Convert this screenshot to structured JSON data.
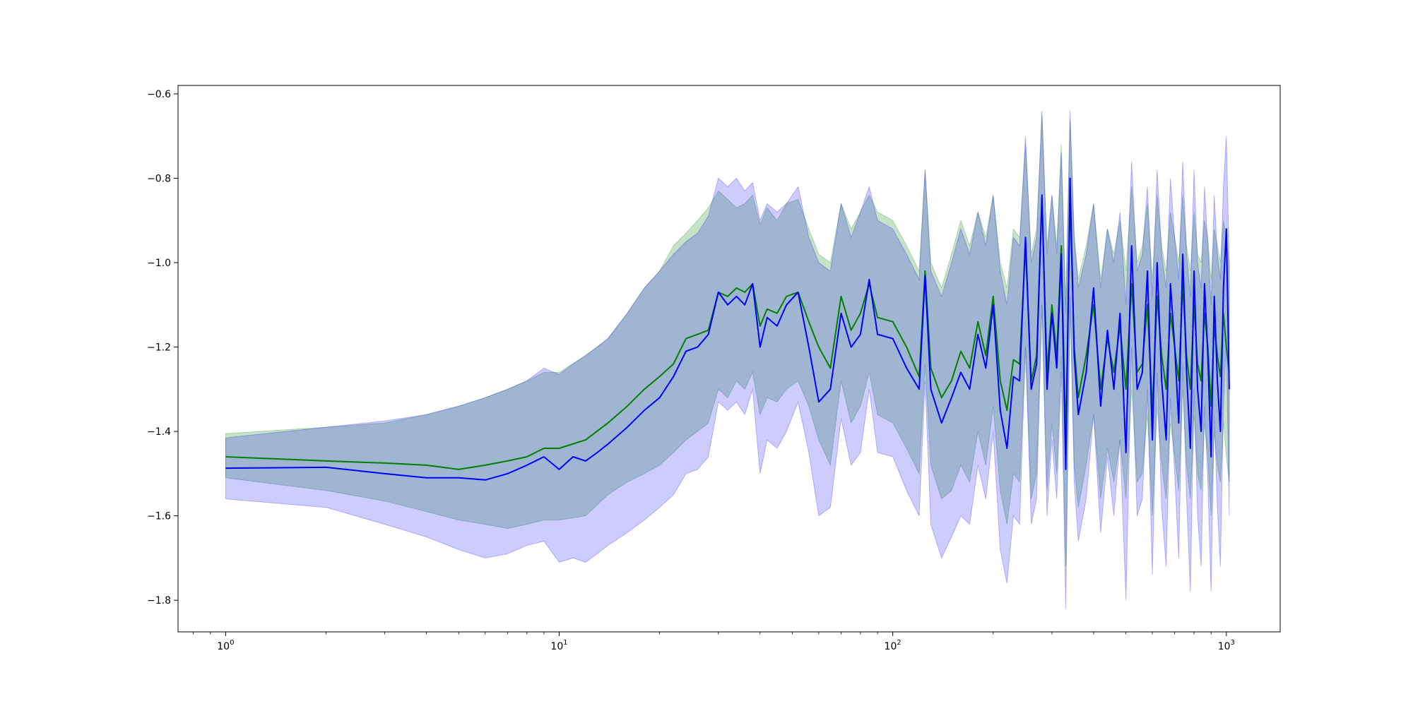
{
  "chart_data": {
    "type": "line",
    "title": "",
    "xlabel": "",
    "ylabel": "",
    "x_scale": "log",
    "xlim": [
      0.72,
      1450
    ],
    "ylim": [
      -1.875,
      -0.58
    ],
    "grid": false,
    "legend": "none",
    "x_ticks": [
      {
        "value": 1,
        "base": "10",
        "exp": "0"
      },
      {
        "value": 10,
        "base": "10",
        "exp": "1"
      },
      {
        "value": 100,
        "base": "10",
        "exp": "2"
      },
      {
        "value": 1000,
        "base": "10",
        "exp": "3"
      }
    ],
    "y_ticks": [
      {
        "value": -0.6,
        "label": "−0.6"
      },
      {
        "value": -0.8,
        "label": "−0.8"
      },
      {
        "value": -1.0,
        "label": "−1.0"
      },
      {
        "value": -1.2,
        "label": "−1.2"
      },
      {
        "value": -1.4,
        "label": "−1.4"
      },
      {
        "value": -1.6,
        "label": "−1.6"
      },
      {
        "value": -1.8,
        "label": "−1.8"
      }
    ],
    "series": [
      {
        "color": "#008000",
        "band_color": "#008000",
        "band_opacity": 0.22,
        "x": [
          1,
          2,
          3,
          4,
          5,
          6,
          7,
          8,
          9,
          10,
          12,
          14,
          16,
          18,
          20,
          22,
          24,
          26,
          28,
          30,
          32,
          34,
          36,
          38,
          40,
          42,
          45,
          48,
          52,
          56,
          60,
          65,
          70,
          75,
          80,
          85,
          90,
          100,
          110,
          120,
          125,
          130,
          140,
          150,
          160,
          170,
          180,
          190,
          200,
          210,
          220,
          230,
          240,
          250,
          260,
          270,
          280,
          290,
          300,
          310,
          320,
          330,
          340,
          350,
          360,
          380,
          400,
          420,
          440,
          460,
          480,
          500,
          520,
          540,
          560,
          580,
          600,
          620,
          640,
          660,
          680,
          700,
          720,
          740,
          760,
          780,
          800,
          820,
          840,
          860,
          880,
          900,
          920,
          940,
          960,
          980,
          1000,
          1020
        ],
        "y": [
          -1.46,
          -1.47,
          -1.475,
          -1.48,
          -1.49,
          -1.48,
          -1.47,
          -1.46,
          -1.44,
          -1.44,
          -1.42,
          -1.38,
          -1.34,
          -1.3,
          -1.27,
          -1.24,
          -1.18,
          -1.17,
          -1.16,
          -1.07,
          -1.08,
          -1.06,
          -1.07,
          -1.05,
          -1.15,
          -1.11,
          -1.12,
          -1.08,
          -1.07,
          -1.14,
          -1.2,
          -1.25,
          -1.08,
          -1.16,
          -1.12,
          -1.05,
          -1.13,
          -1.14,
          -1.2,
          -1.27,
          -1.02,
          -1.25,
          -1.32,
          -1.28,
          -1.21,
          -1.25,
          -1.14,
          -1.22,
          -1.08,
          -1.28,
          -1.35,
          -1.23,
          -1.24,
          -0.96,
          -1.28,
          -1.22,
          -0.85,
          -1.26,
          -1.1,
          -1.22,
          -0.96,
          -1.42,
          -0.85,
          -1.2,
          -1.32,
          -1.22,
          -1.1,
          -1.3,
          -1.18,
          -1.26,
          -1.15,
          -1.3,
          -1.05,
          -1.26,
          -1.24,
          -1.1,
          -1.35,
          -1.08,
          -1.22,
          -1.3,
          -1.12,
          -1.2,
          -1.28,
          -1.05,
          -1.22,
          -1.3,
          -1.1,
          -1.24,
          -1.28,
          -1.12,
          -1.2,
          -1.34,
          -1.15,
          -1.22,
          -1.27,
          -1.12,
          -1.2,
          -1.26
        ],
        "upper": [
          -1.405,
          -1.39,
          -1.38,
          -1.36,
          -1.34,
          -1.32,
          -1.3,
          -1.28,
          -1.26,
          -1.26,
          -1.22,
          -1.18,
          -1.12,
          -1.06,
          -1.02,
          -0.96,
          -0.93,
          -0.9,
          -0.87,
          -0.83,
          -0.85,
          -0.87,
          -0.86,
          -0.84,
          -0.91,
          -0.87,
          -0.9,
          -0.86,
          -0.85,
          -0.92,
          -0.98,
          -1.0,
          -0.86,
          -0.92,
          -0.88,
          -0.84,
          -0.88,
          -0.9,
          -0.96,
          -1.02,
          -0.78,
          -1.0,
          -1.06,
          -0.98,
          -0.9,
          -0.96,
          -0.88,
          -0.94,
          -0.84,
          -1.0,
          -1.06,
          -0.92,
          -0.94,
          -0.72,
          -0.98,
          -0.92,
          -0.65,
          -0.96,
          -0.84,
          -0.96,
          -0.72,
          -1.1,
          -0.66,
          -0.94,
          -1.04,
          -0.96,
          -0.86,
          -1.04,
          -0.92,
          -0.98,
          -0.9,
          -1.02,
          -0.82,
          -1.0,
          -0.96,
          -0.86,
          -1.04,
          -0.84,
          -0.96,
          -1.02,
          -0.88,
          -0.94,
          -1.0,
          -0.84,
          -0.96,
          -1.02,
          -0.88,
          -0.98,
          -1.0,
          -0.9,
          -0.94,
          -1.04,
          -0.92,
          -0.96,
          -1.0,
          -0.9,
          -0.94,
          -1.0
        ],
        "lower": [
          -1.51,
          -1.54,
          -1.565,
          -1.59,
          -1.61,
          -1.62,
          -1.63,
          -1.62,
          -1.61,
          -1.61,
          -1.6,
          -1.55,
          -1.52,
          -1.5,
          -1.48,
          -1.45,
          -1.42,
          -1.4,
          -1.38,
          -1.3,
          -1.32,
          -1.28,
          -1.3,
          -1.26,
          -1.36,
          -1.32,
          -1.33,
          -1.3,
          -1.28,
          -1.34,
          -1.42,
          -1.48,
          -1.28,
          -1.38,
          -1.34,
          -1.26,
          -1.36,
          -1.38,
          -1.44,
          -1.5,
          -1.24,
          -1.48,
          -1.56,
          -1.54,
          -1.48,
          -1.52,
          -1.4,
          -1.48,
          -1.34,
          -1.54,
          -1.62,
          -1.5,
          -1.52,
          -1.2,
          -1.56,
          -1.5,
          -1.1,
          -1.54,
          -1.38,
          -1.5,
          -1.22,
          -1.72,
          -1.1,
          -1.48,
          -1.58,
          -1.48,
          -1.36,
          -1.56,
          -1.44,
          -1.52,
          -1.42,
          -1.56,
          -1.3,
          -1.52,
          -1.5,
          -1.36,
          -1.6,
          -1.34,
          -1.48,
          -1.56,
          -1.38,
          -1.46,
          -1.54,
          -1.3,
          -1.48,
          -1.56,
          -1.36,
          -1.5,
          -1.54,
          -1.38,
          -1.46,
          -1.6,
          -1.4,
          -1.48,
          -1.52,
          -1.38,
          -1.46,
          -1.52
        ]
      },
      {
        "color": "#0000ff",
        "band_color": "#0000ff",
        "band_opacity": 0.2,
        "x": [
          1,
          2,
          3,
          4,
          5,
          6,
          7,
          8,
          9,
          10,
          11,
          12,
          13,
          14,
          16,
          18,
          20,
          22,
          24,
          26,
          28,
          30,
          32,
          34,
          36,
          38,
          40,
          42,
          45,
          48,
          52,
          56,
          60,
          65,
          70,
          75,
          80,
          85,
          90,
          100,
          110,
          120,
          125,
          130,
          140,
          150,
          160,
          170,
          180,
          190,
          200,
          210,
          220,
          230,
          240,
          250,
          260,
          270,
          280,
          290,
          300,
          310,
          320,
          330,
          340,
          350,
          360,
          380,
          400,
          420,
          440,
          460,
          480,
          500,
          520,
          540,
          560,
          580,
          600,
          620,
          640,
          660,
          680,
          700,
          720,
          740,
          760,
          780,
          800,
          820,
          840,
          860,
          880,
          900,
          920,
          940,
          960,
          980,
          1000,
          1020
        ],
        "y": [
          -1.487,
          -1.485,
          -1.5,
          -1.51,
          -1.51,
          -1.515,
          -1.5,
          -1.48,
          -1.46,
          -1.49,
          -1.46,
          -1.47,
          -1.45,
          -1.43,
          -1.39,
          -1.35,
          -1.32,
          -1.27,
          -1.21,
          -1.2,
          -1.17,
          -1.07,
          -1.1,
          -1.08,
          -1.1,
          -1.05,
          -1.2,
          -1.13,
          -1.15,
          -1.1,
          -1.07,
          -1.2,
          -1.33,
          -1.3,
          -1.12,
          -1.2,
          -1.17,
          -1.04,
          -1.17,
          -1.18,
          -1.25,
          -1.3,
          -1.03,
          -1.3,
          -1.38,
          -1.32,
          -1.26,
          -1.3,
          -1.17,
          -1.25,
          -1.1,
          -1.35,
          -1.44,
          -1.27,
          -1.28,
          -0.94,
          -1.3,
          -1.24,
          -0.84,
          -1.3,
          -1.12,
          -1.25,
          -0.98,
          -1.49,
          -0.8,
          -1.22,
          -1.36,
          -1.26,
          -1.06,
          -1.34,
          -1.16,
          -1.3,
          -1.12,
          -1.45,
          -0.96,
          -1.3,
          -1.26,
          -1.02,
          -1.42,
          -1.0,
          -1.28,
          -1.42,
          -1.05,
          -1.2,
          -1.38,
          -0.98,
          -1.26,
          -1.44,
          -1.02,
          -1.3,
          -1.4,
          -1.05,
          -1.22,
          -1.46,
          -1.08,
          -1.28,
          -1.4,
          -1.06,
          -0.92,
          -1.3
        ],
        "upper": [
          -1.415,
          -1.39,
          -1.375,
          -1.36,
          -1.34,
          -1.32,
          -1.3,
          -1.28,
          -1.25,
          -1.265,
          -1.24,
          -1.22,
          -1.2,
          -1.18,
          -1.12,
          -1.06,
          -1.02,
          -0.98,
          -0.95,
          -0.93,
          -0.89,
          -0.8,
          -0.82,
          -0.8,
          -0.83,
          -0.81,
          -0.9,
          -0.86,
          -0.88,
          -0.86,
          -0.82,
          -0.94,
          -1.0,
          -1.02,
          -0.86,
          -0.94,
          -0.88,
          -0.82,
          -0.9,
          -0.92,
          -0.98,
          -1.04,
          -0.78,
          -1.02,
          -1.08,
          -1.0,
          -0.92,
          -0.98,
          -0.88,
          -0.96,
          -0.84,
          -1.02,
          -1.1,
          -0.94,
          -0.96,
          -0.7,
          -1.0,
          -0.94,
          -0.64,
          -0.98,
          -0.84,
          -0.98,
          -0.74,
          -1.12,
          -0.64,
          -0.94,
          -1.06,
          -0.98,
          -0.86,
          -1.06,
          -0.92,
          -1.0,
          -0.88,
          -1.1,
          -0.76,
          -1.02,
          -0.98,
          -0.82,
          -1.08,
          -0.78,
          -0.98,
          -1.06,
          -0.8,
          -0.94,
          -1.04,
          -0.76,
          -0.98,
          -1.08,
          -0.78,
          -1.0,
          -1.06,
          -0.82,
          -0.96,
          -1.1,
          -0.84,
          -0.98,
          -1.04,
          -0.82,
          -0.7,
          -1.0
        ],
        "lower": [
          -1.56,
          -1.58,
          -1.62,
          -1.65,
          -1.68,
          -1.7,
          -1.69,
          -1.67,
          -1.66,
          -1.71,
          -1.7,
          -1.71,
          -1.69,
          -1.67,
          -1.64,
          -1.61,
          -1.58,
          -1.55,
          -1.5,
          -1.49,
          -1.46,
          -1.33,
          -1.35,
          -1.33,
          -1.36,
          -1.3,
          -1.5,
          -1.42,
          -1.44,
          -1.4,
          -1.33,
          -1.45,
          -1.6,
          -1.58,
          -1.37,
          -1.48,
          -1.45,
          -1.3,
          -1.45,
          -1.46,
          -1.54,
          -1.6,
          -1.28,
          -1.62,
          -1.7,
          -1.65,
          -1.6,
          -1.62,
          -1.48,
          -1.56,
          -1.4,
          -1.68,
          -1.76,
          -1.6,
          -1.62,
          -1.2,
          -1.62,
          -1.56,
          -1.1,
          -1.6,
          -1.42,
          -1.56,
          -1.26,
          -1.82,
          -1.08,
          -1.52,
          -1.66,
          -1.56,
          -1.36,
          -1.64,
          -1.46,
          -1.6,
          -1.42,
          -1.8,
          -1.2,
          -1.6,
          -1.56,
          -1.3,
          -1.74,
          -1.26,
          -1.58,
          -1.72,
          -1.32,
          -1.5,
          -1.7,
          -1.24,
          -1.56,
          -1.78,
          -1.3,
          -1.6,
          -1.72,
          -1.34,
          -1.52,
          -1.78,
          -1.36,
          -1.58,
          -1.72,
          -1.34,
          -1.18,
          -1.6
        ]
      }
    ]
  }
}
